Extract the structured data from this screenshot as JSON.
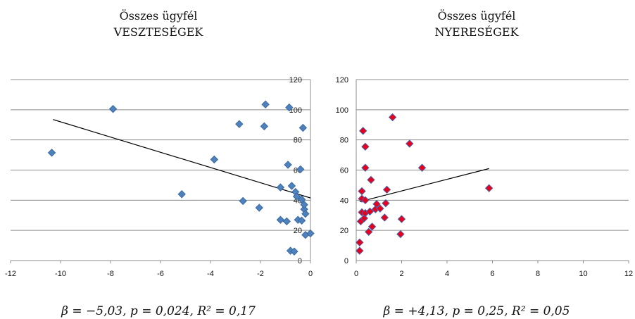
{
  "chart_data": [
    {
      "type": "scatter",
      "title": "Összes ügyfél",
      "subtitle": "VESZTESÉGEK",
      "caption": "β = −5,03, p = 0,024, R² = 0,17",
      "xlim": [
        -12,
        0
      ],
      "ylim": [
        0,
        120
      ],
      "xticks": [
        -12,
        -10,
        -8,
        -6,
        -4,
        -2,
        0
      ],
      "yticks": [
        0,
        20,
        40,
        60,
        80,
        100,
        120
      ],
      "y_axis_side": "right",
      "grid": "horizontal",
      "marker": {
        "shape": "diamond",
        "fill": "#4f81bd",
        "stroke": "#3a6aa3"
      },
      "trendline": {
        "x": [
          -10.3,
          0
        ],
        "y": [
          93.5,
          41.5
        ],
        "color": "#000000"
      },
      "points": [
        {
          "x": -10.35,
          "y": 71.5
        },
        {
          "x": -7.9,
          "y": 100.5
        },
        {
          "x": -5.15,
          "y": 44
        },
        {
          "x": -3.85,
          "y": 67
        },
        {
          "x": -2.85,
          "y": 90.5
        },
        {
          "x": -2.7,
          "y": 39.5
        },
        {
          "x": -2.05,
          "y": 35
        },
        {
          "x": -1.85,
          "y": 89
        },
        {
          "x": -1.8,
          "y": 103.5
        },
        {
          "x": -1.2,
          "y": 48.5
        },
        {
          "x": -1.2,
          "y": 27
        },
        {
          "x": -0.95,
          "y": 26
        },
        {
          "x": -0.9,
          "y": 63.5
        },
        {
          "x": -0.85,
          "y": 101.5
        },
        {
          "x": -0.8,
          "y": 6.5
        },
        {
          "x": -0.75,
          "y": 49.5
        },
        {
          "x": -0.65,
          "y": 6
        },
        {
          "x": -0.6,
          "y": 45.5
        },
        {
          "x": -0.55,
          "y": 42.5
        },
        {
          "x": -0.5,
          "y": 27
        },
        {
          "x": -0.4,
          "y": 60.5
        },
        {
          "x": -0.35,
          "y": 26.5
        },
        {
          "x": -0.35,
          "y": 40.5
        },
        {
          "x": -0.3,
          "y": 88
        },
        {
          "x": -0.25,
          "y": 34
        },
        {
          "x": -0.25,
          "y": 37
        },
        {
          "x": -0.2,
          "y": 31
        },
        {
          "x": -0.2,
          "y": 17
        },
        {
          "x": 0,
          "y": 18
        }
      ]
    },
    {
      "type": "scatter",
      "title": "Összes ügyfél",
      "subtitle": "NYERESÉGEK",
      "caption": "β = +4,13, p = 0,25, R² = 0,05",
      "xlim": [
        0,
        12
      ],
      "ylim": [
        0,
        120
      ],
      "xticks": [
        0,
        2,
        4,
        6,
        8,
        10,
        12
      ],
      "yticks": [
        0,
        20,
        40,
        60,
        80,
        100,
        120
      ],
      "y_axis_side": "left",
      "grid": "horizontal",
      "marker": {
        "shape": "diamond",
        "fill": "#e8001c",
        "stroke": "#4b5fa8"
      },
      "trendline": {
        "x": [
          0.15,
          5.85
        ],
        "y": [
          39,
          61
        ],
        "color": "#000000"
      },
      "points": [
        {
          "x": 0.15,
          "y": 12
        },
        {
          "x": 0.15,
          "y": 6.5
        },
        {
          "x": 0.2,
          "y": 26
        },
        {
          "x": 0.25,
          "y": 32
        },
        {
          "x": 0.25,
          "y": 41
        },
        {
          "x": 0.25,
          "y": 46
        },
        {
          "x": 0.3,
          "y": 86
        },
        {
          "x": 0.35,
          "y": 28
        },
        {
          "x": 0.4,
          "y": 31.5
        },
        {
          "x": 0.4,
          "y": 40
        },
        {
          "x": 0.4,
          "y": 61.5
        },
        {
          "x": 0.4,
          "y": 75.5
        },
        {
          "x": 0.55,
          "y": 19
        },
        {
          "x": 0.6,
          "y": 32.5
        },
        {
          "x": 0.65,
          "y": 53.5
        },
        {
          "x": 0.7,
          "y": 22.5
        },
        {
          "x": 0.85,
          "y": 34
        },
        {
          "x": 0.9,
          "y": 37.5
        },
        {
          "x": 1.05,
          "y": 34.5
        },
        {
          "x": 1.25,
          "y": 28.5
        },
        {
          "x": 1.3,
          "y": 38
        },
        {
          "x": 1.35,
          "y": 47
        },
        {
          "x": 1.6,
          "y": 95
        },
        {
          "x": 1.95,
          "y": 17.5
        },
        {
          "x": 2.0,
          "y": 27.5
        },
        {
          "x": 2.35,
          "y": 77.5
        },
        {
          "x": 2.9,
          "y": 61.5
        },
        {
          "x": 5.85,
          "y": 48
        }
      ]
    }
  ]
}
